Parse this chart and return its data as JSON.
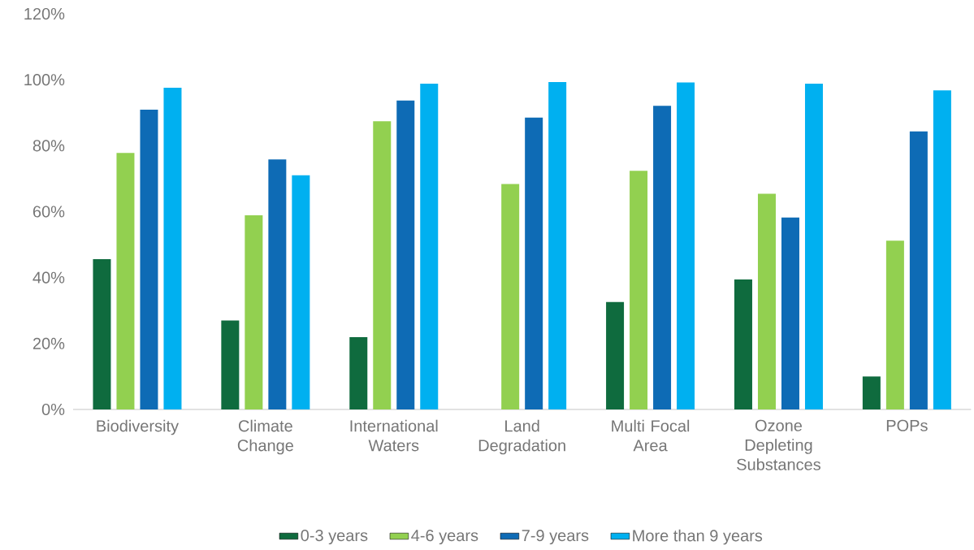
{
  "chart_data": {
    "type": "bar",
    "categories": [
      "Biodiversity",
      "Climate Change",
      "International Waters",
      "Land Degradation",
      "Multi Focal Area",
      "Ozone Depleting Substances",
      "POPs"
    ],
    "series": [
      {
        "name": "0-3 years",
        "color": "#0f6b3e",
        "values": [
          45.6,
          27.0,
          21.9,
          null,
          32.6,
          39.4,
          10.0
        ]
      },
      {
        "name": "4-6 years",
        "color": "#92d050",
        "values": [
          77.8,
          58.9,
          87.4,
          68.4,
          72.4,
          65.4,
          51.2
        ]
      },
      {
        "name": "7-9 years",
        "color": "#0e6bb5",
        "values": [
          90.9,
          75.8,
          93.7,
          88.5,
          92.1,
          58.2,
          84.3
        ]
      },
      {
        "name": "More than 9 years",
        "color": "#00b0f0",
        "values": [
          97.6,
          71.0,
          98.8,
          99.3,
          99.2,
          98.8,
          96.8
        ]
      }
    ],
    "ylim": [
      0,
      120
    ],
    "yticks": [
      {
        "value": 0,
        "label": "0%"
      },
      {
        "value": 20,
        "label": "20%"
      },
      {
        "value": 40,
        "label": "40%"
      },
      {
        "value": 60,
        "label": "60%"
      },
      {
        "value": 80,
        "label": "80%"
      },
      {
        "value": 100,
        "label": "100%"
      },
      {
        "value": 120,
        "label": "120%"
      }
    ],
    "legend": "bottom"
  }
}
